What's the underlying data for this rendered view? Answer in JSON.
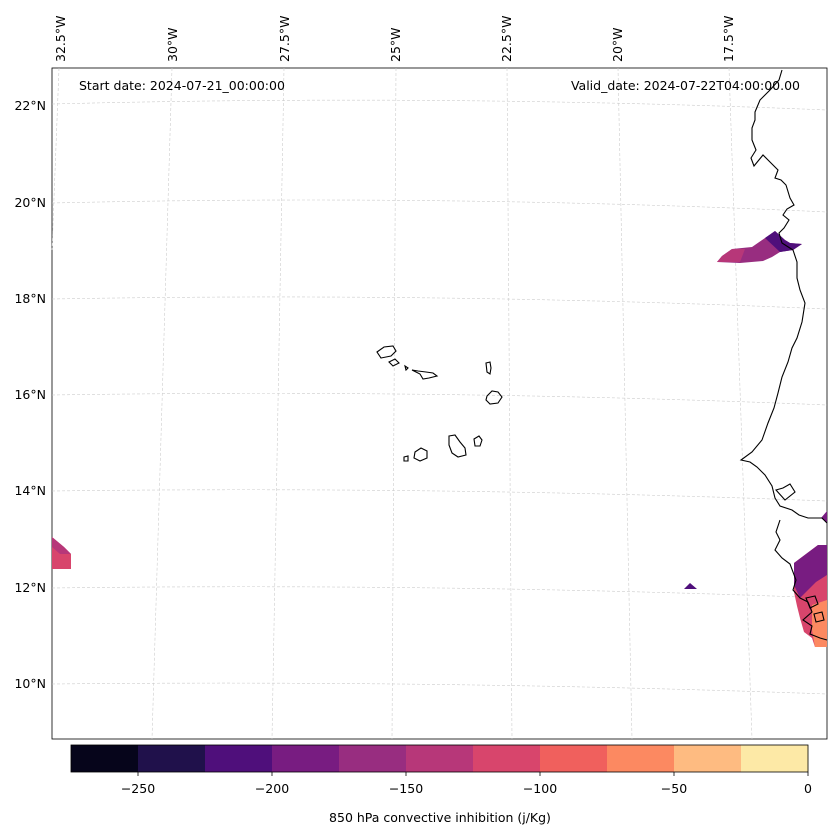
{
  "header": {
    "start_date": "Start date: 2024-07-21_00:00:00",
    "valid_date": "Valid_date: 2024-07-22T04:00:00.00"
  },
  "map": {
    "lon_labels": [
      "32.5°W",
      "30°W",
      "27.5°W",
      "25°W",
      "22.5°W",
      "20°W",
      "17.5°W"
    ],
    "lat_labels": [
      "22°N",
      "20°N",
      "18°N",
      "16°N",
      "14°N",
      "12°N",
      "10°N"
    ]
  },
  "colorbar": {
    "label": "850 hPa convective inhibition (j/Kg)",
    "ticks": [
      "−250",
      "−200",
      "−150",
      "−100",
      "−50",
      "0"
    ],
    "levels": [
      -275,
      -250,
      -225,
      -200,
      -175,
      -150,
      -125,
      -100,
      -75,
      -50,
      -25,
      0
    ],
    "colors": [
      "#06051b",
      "#20114b",
      "#4f0f7b",
      "#781c81",
      "#982d80",
      "#b73779",
      "#d8456c",
      "#f0605d",
      "#fc8961",
      "#febb81",
      "#fde9a6"
    ]
  }
}
